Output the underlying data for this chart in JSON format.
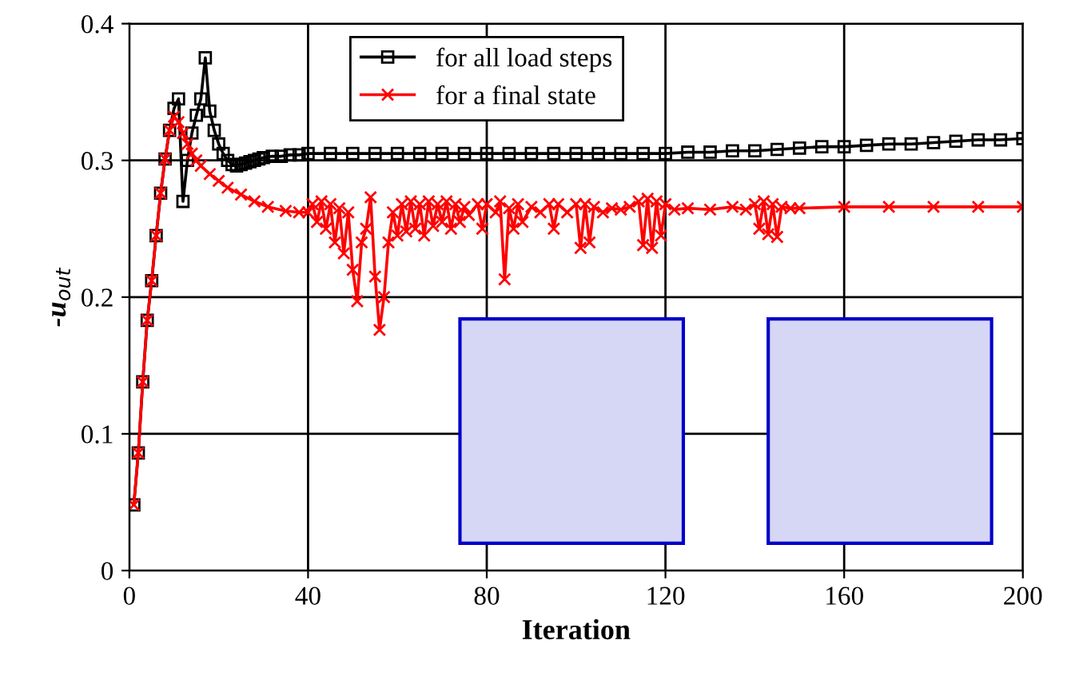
{
  "chart_data": {
    "type": "line",
    "xlabel": "Iteration",
    "ylabel": "-u$_{out}$",
    "xlim": [
      0,
      200
    ],
    "xticks": [
      0,
      40,
      80,
      120,
      160,
      200
    ],
    "ylim": [
      0,
      0.4
    ],
    "yticks": [
      0,
      {
        "value": 0.1,
        "label": "0.1"
      },
      {
        "value": 0.2,
        "label": "0.2"
      },
      {
        "value": 0.3,
        "label": "0.3"
      },
      {
        "value": 0.4,
        "label": "0.4"
      }
    ],
    "grid": true,
    "legend": "top",
    "line_style": "solid",
    "series": [
      {
        "name": "for all load steps",
        "color": "#000000",
        "marker": "square",
        "x": [
          1,
          2,
          3,
          4,
          5,
          6,
          7,
          8,
          9,
          10,
          11,
          12,
          13,
          14,
          15,
          16,
          17,
          18,
          19,
          20,
          21,
          22,
          23,
          24,
          25,
          26,
          27,
          28,
          29,
          30,
          32,
          34,
          36,
          38,
          40,
          45,
          50,
          55,
          60,
          65,
          70,
          75,
          80,
          85,
          90,
          95,
          100,
          105,
          110,
          115,
          120,
          125,
          130,
          135,
          140,
          145,
          150,
          155,
          160,
          165,
          170,
          175,
          180,
          185,
          190,
          195,
          200
        ],
        "values": [
          0.048,
          0.086,
          0.138,
          0.183,
          0.212,
          0.245,
          0.276,
          0.301,
          0.322,
          0.338,
          0.345,
          0.27,
          0.3,
          0.32,
          0.333,
          0.345,
          0.375,
          0.336,
          0.322,
          0.312,
          0.305,
          0.3,
          0.297,
          0.296,
          0.297,
          0.298,
          0.299,
          0.3,
          0.301,
          0.302,
          0.303,
          0.303,
          0.304,
          0.304,
          0.305,
          0.305,
          0.305,
          0.305,
          0.305,
          0.305,
          0.305,
          0.305,
          0.305,
          0.305,
          0.305,
          0.305,
          0.305,
          0.305,
          0.305,
          0.305,
          0.305,
          0.306,
          0.306,
          0.307,
          0.307,
          0.308,
          0.309,
          0.31,
          0.31,
          0.311,
          0.312,
          0.312,
          0.313,
          0.314,
          0.315,
          0.315,
          0.316
        ]
      },
      {
        "name": "for a final state",
        "color": "#ff0000",
        "marker": "cross",
        "x": [
          1,
          2,
          3,
          4,
          5,
          6,
          7,
          8,
          9,
          10,
          11,
          12,
          13,
          14,
          15,
          16,
          18,
          20,
          22,
          25,
          28,
          31,
          35,
          38,
          40,
          41,
          42,
          43,
          44,
          45,
          46,
          47,
          48,
          49,
          50,
          51,
          52,
          53,
          54,
          55,
          56,
          57,
          58,
          59,
          60,
          61,
          62,
          63,
          64,
          65,
          66,
          67,
          68,
          69,
          70,
          71,
          72,
          73,
          74,
          75,
          76,
          78,
          79,
          80,
          82,
          83,
          84,
          85,
          86,
          87,
          88,
          90,
          92,
          94,
          95,
          96,
          98,
          100,
          101,
          102,
          103,
          104,
          106,
          108,
          110,
          112,
          114,
          115,
          116,
          117,
          118,
          119,
          120,
          122,
          125,
          130,
          135,
          138,
          140,
          141,
          142,
          143,
          144,
          145,
          146,
          148,
          150,
          160,
          170,
          180,
          190,
          200
        ],
        "values": [
          0.048,
          0.086,
          0.138,
          0.183,
          0.212,
          0.245,
          0.276,
          0.301,
          0.322,
          0.332,
          0.328,
          0.32,
          0.312,
          0.305,
          0.3,
          0.296,
          0.29,
          0.285,
          0.28,
          0.275,
          0.27,
          0.266,
          0.263,
          0.262,
          0.262,
          0.268,
          0.255,
          0.27,
          0.25,
          0.268,
          0.24,
          0.265,
          0.232,
          0.262,
          0.22,
          0.197,
          0.24,
          0.25,
          0.273,
          0.215,
          0.176,
          0.2,
          0.24,
          0.262,
          0.245,
          0.268,
          0.248,
          0.27,
          0.25,
          0.268,
          0.245,
          0.27,
          0.252,
          0.268,
          0.255,
          0.27,
          0.25,
          0.268,
          0.255,
          0.266,
          0.26,
          0.268,
          0.25,
          0.268,
          0.262,
          0.27,
          0.213,
          0.265,
          0.25,
          0.268,
          0.255,
          0.266,
          0.262,
          0.268,
          0.25,
          0.268,
          0.262,
          0.268,
          0.236,
          0.268,
          0.24,
          0.266,
          0.262,
          0.265,
          0.264,
          0.266,
          0.27,
          0.238,
          0.272,
          0.236,
          0.27,
          0.245,
          0.268,
          0.264,
          0.265,
          0.264,
          0.266,
          0.264,
          0.268,
          0.25,
          0.27,
          0.246,
          0.268,
          0.244,
          0.266,
          0.265,
          0.265,
          0.266,
          0.266,
          0.266,
          0.266,
          0.266
        ]
      }
    ]
  }
}
